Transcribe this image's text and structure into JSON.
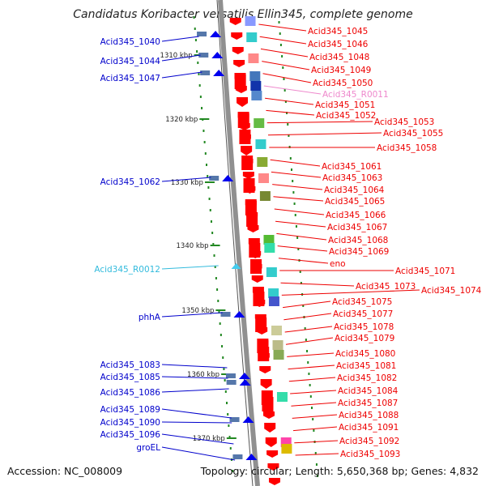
{
  "title": "Candidatus Koribacter versatilis Ellin345, complete genome",
  "footer": {
    "accession": "Accession: NC_008009",
    "topology": "Topology: circular; Length: 5,650,368 bp; Genes: 4,832"
  },
  "ticks": [
    "1310 kbp",
    "1320 kbp",
    "1330 kbp",
    "1340 kbp",
    "1350 kbp",
    "1360 kbp",
    "1370 kbp"
  ],
  "left_labels": [
    {
      "text": "Acid345_1040",
      "color": "#0000cc"
    },
    {
      "text": "Acid345_1044",
      "color": "#0000cc"
    },
    {
      "text": "Acid345_1047",
      "color": "#0000cc"
    },
    {
      "text": "Acid345_1062",
      "color": "#0000cc"
    },
    {
      "text": "Acid345_R0012",
      "color": "#33bbdd"
    },
    {
      "text": "phhA",
      "color": "#0000cc"
    },
    {
      "text": "Acid345_1083",
      "color": "#0000cc"
    },
    {
      "text": "Acid345_1085",
      "color": "#0000cc"
    },
    {
      "text": "Acid345_1086",
      "color": "#0000cc"
    },
    {
      "text": "Acid345_1089",
      "color": "#0000cc"
    },
    {
      "text": "Acid345_1090",
      "color": "#0000cc"
    },
    {
      "text": "Acid345_1096",
      "color": "#0000cc"
    },
    {
      "text": "groEL",
      "color": "#0000cc"
    }
  ],
  "right_labels": [
    {
      "text": "Acid345_1045",
      "color": "#ee0000"
    },
    {
      "text": "Acid345_1046",
      "color": "#ee0000"
    },
    {
      "text": "Acid345_1048",
      "color": "#ee0000"
    },
    {
      "text": "Acid345_1049",
      "color": "#ee0000"
    },
    {
      "text": "Acid345_1050",
      "color": "#ee0000"
    },
    {
      "text": "Acid345_R0011",
      "color": "#ee88cc"
    },
    {
      "text": "Acid345_1051",
      "color": "#ee0000"
    },
    {
      "text": "Acid345_1052",
      "color": "#ee0000"
    },
    {
      "text": "Acid345_1053",
      "color": "#ee0000"
    },
    {
      "text": "Acid345_1055",
      "color": "#ee0000"
    },
    {
      "text": "Acid345_1058",
      "color": "#ee0000"
    },
    {
      "text": "Acid345_1061",
      "color": "#ee0000"
    },
    {
      "text": "Acid345_1063",
      "color": "#ee0000"
    },
    {
      "text": "Acid345_1064",
      "color": "#ee0000"
    },
    {
      "text": "Acid345_1065",
      "color": "#ee0000"
    },
    {
      "text": "Acid345_1066",
      "color": "#ee0000"
    },
    {
      "text": "Acid345_1067",
      "color": "#ee0000"
    },
    {
      "text": "Acid345_1068",
      "color": "#ee0000"
    },
    {
      "text": "Acid345_1069",
      "color": "#ee0000"
    },
    {
      "text": "eno",
      "color": "#ee0000"
    },
    {
      "text": "Acid345_1071",
      "color": "#ee0000"
    },
    {
      "text": "Acid345_1073",
      "color": "#ee0000"
    },
    {
      "text": "Acid345_1074",
      "color": "#ee0000"
    },
    {
      "text": "Acid345_1075",
      "color": "#ee0000"
    },
    {
      "text": "Acid345_1077",
      "color": "#ee0000"
    },
    {
      "text": "Acid345_1078",
      "color": "#ee0000"
    },
    {
      "text": "Acid345_1079",
      "color": "#ee0000"
    },
    {
      "text": "Acid345_1080",
      "color": "#ee0000"
    },
    {
      "text": "Acid345_1081",
      "color": "#ee0000"
    },
    {
      "text": "Acid345_1082",
      "color": "#ee0000"
    },
    {
      "text": "Acid345_1084",
      "color": "#ee0000"
    },
    {
      "text": "Acid345_1087",
      "color": "#ee0000"
    },
    {
      "text": "Acid345_1088",
      "color": "#ee0000"
    },
    {
      "text": "Acid345_1091",
      "color": "#ee0000"
    },
    {
      "text": "Acid345_1092",
      "color": "#ee0000"
    },
    {
      "text": "Acid345_1093",
      "color": "#ee0000"
    }
  ],
  "colors": {
    "forward_gene": "#ff0000",
    "reverse_gene": "#0000ee",
    "backbone": "#909090",
    "tick": "#228822",
    "rna": "#44ccee"
  }
}
